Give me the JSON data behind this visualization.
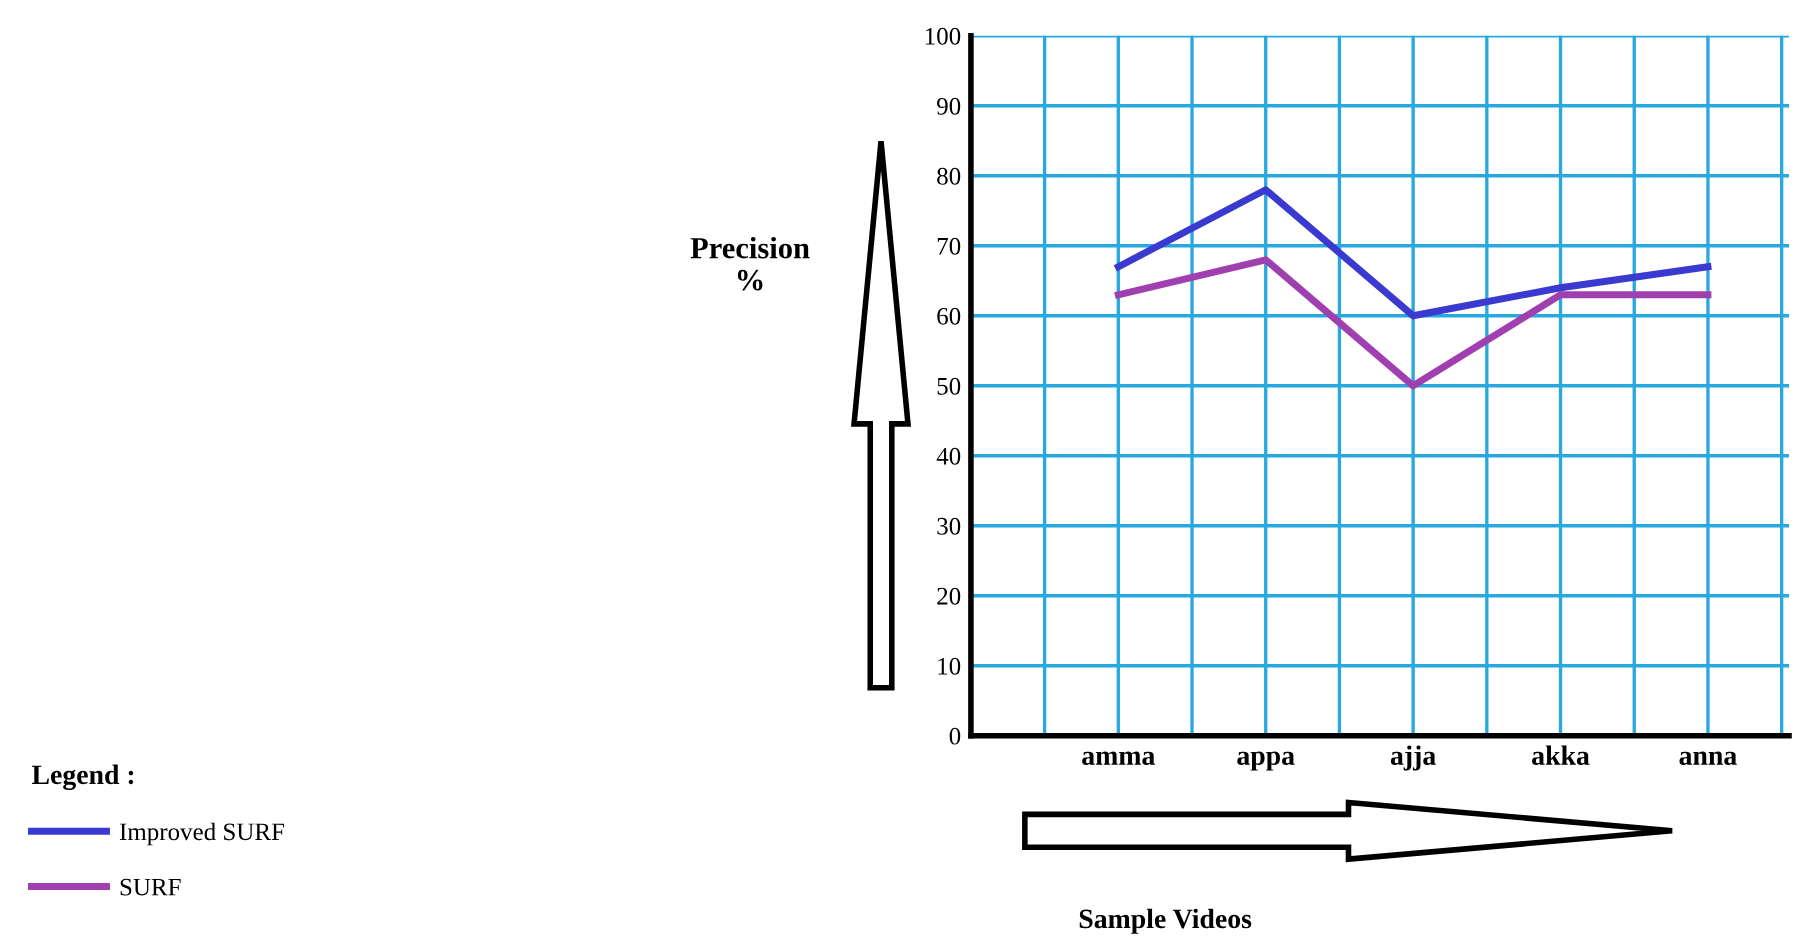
{
  "chart_data": {
    "type": "line",
    "categories": [
      "amma",
      "appa",
      "ajja",
      "akka",
      "anna"
    ],
    "series": [
      {
        "name": "Improved SURF",
        "color": "#3a3ad0",
        "values": [
          67,
          78,
          60,
          64,
          67
        ]
      },
      {
        "name": "SURF",
        "color": "#a040b0",
        "values": [
          63,
          68,
          50,
          63,
          63
        ]
      }
    ],
    "xlabel": "Sample Videos",
    "ylabel": "Precision\n%",
    "legend_title": "Legend :",
    "ylim": [
      0,
      100
    ],
    "yticks": [
      0,
      10,
      20,
      30,
      40,
      50,
      60,
      70,
      80,
      90,
      100
    ],
    "grid": true,
    "legend": "bottom left",
    "marker": "none",
    "line_style": "solid"
  }
}
